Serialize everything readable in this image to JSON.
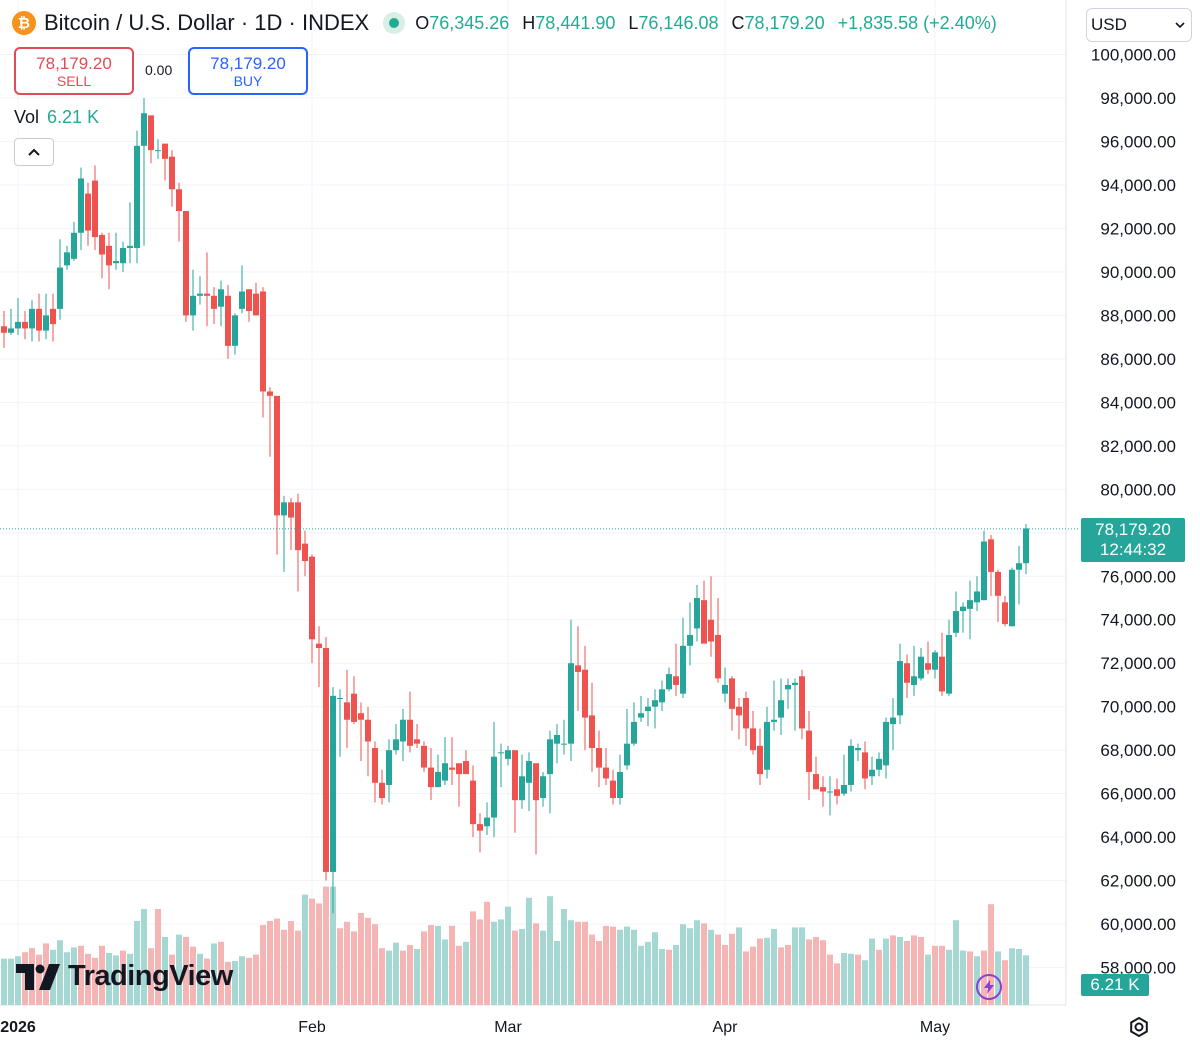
{
  "header": {
    "symbol_title": "Bitcoin / U.S. Dollar · 1D · INDEX",
    "coin_glyph": "₿",
    "ohlc": {
      "o_label": "O",
      "o_value": "76,345.26",
      "h_label": "H",
      "h_value": "78,441.90",
      "l_label": "L",
      "l_value": "76,146.08",
      "c_label": "C",
      "c_value": "78,179.20",
      "change": "+1,835.58 (+2.40%)"
    }
  },
  "trade": {
    "sell_price": "78,179.20",
    "sell_label": "SELL",
    "spread": "0.00",
    "buy_price": "78,179.20",
    "buy_label": "BUY"
  },
  "volume_legend": {
    "label": "Vol",
    "value": "6.21 K"
  },
  "currency_select": {
    "value": "USD"
  },
  "price_tag": {
    "price": "78,179.20",
    "countdown": "12:44:32"
  },
  "volume_tag": "6.21 K",
  "branding": {
    "name": "TradingView"
  },
  "colors": {
    "up": "#26a69a",
    "down": "#ef5350",
    "up_volume": "#a6d8d3",
    "down_volume": "#f5b5b4",
    "grid": "#f0f3fa"
  },
  "chart_data": {
    "type": "candlestick",
    "ylim": [
      56000,
      101200
    ],
    "y_ticks": [
      "100,000.00",
      "98,000.00",
      "96,000.00",
      "94,000.00",
      "92,000.00",
      "90,000.00",
      "88,000.00",
      "86,000.00",
      "84,000.00",
      "82,000.00",
      "80,000.00",
      "78,000.00",
      "76,000.00",
      "74,000.00",
      "72,000.00",
      "70,000.00",
      "68,000.00",
      "66,000.00",
      "64,000.00",
      "62,000.00",
      "60,000.00",
      "58,000.00"
    ],
    "x_ticks": [
      {
        "label": "2026",
        "index": 2
      },
      {
        "label": "Feb",
        "index": 44
      },
      {
        "label": "Mar",
        "index": 72
      },
      {
        "label": "Apr",
        "index": 103
      },
      {
        "label": "May",
        "index": 133
      }
    ],
    "last_price": 78179.2,
    "candles": [
      [
        87500,
        87200,
        88200,
        86500
      ],
      [
        87200,
        87400,
        88300,
        87100
      ],
      [
        87400,
        87700,
        88800,
        87100
      ],
      [
        87700,
        87400,
        88200,
        86900
      ],
      [
        87400,
        88300,
        88700,
        86800
      ],
      [
        88300,
        87300,
        89000,
        86800
      ],
      [
        87300,
        88000,
        89000,
        86900
      ],
      [
        88300,
        87600,
        89000,
        86800
      ],
      [
        88300,
        90200,
        91500,
        87800
      ],
      [
        90300,
        90900,
        91200,
        90100
      ],
      [
        90600,
        91800,
        92300,
        90500
      ],
      [
        91800,
        94300,
        94800,
        91000
      ],
      [
        93600,
        91900,
        94100,
        91200
      ],
      [
        94200,
        91600,
        94900,
        91000
      ],
      [
        91700,
        90800,
        91800,
        89700
      ],
      [
        91200,
        90300,
        91800,
        89200
      ],
      [
        90400,
        90500,
        91800,
        90100
      ],
      [
        90400,
        91100,
        91400,
        90000
      ],
      [
        91100,
        91200,
        93200,
        90400
      ],
      [
        91100,
        95800,
        96500,
        90400
      ],
      [
        95800,
        97300,
        98000,
        91200
      ],
      [
        97200,
        95600,
        97100,
        95000
      ],
      [
        95600,
        95600,
        96100,
        95200
      ],
      [
        95900,
        95200,
        95800,
        94200
      ],
      [
        95300,
        93800,
        95600,
        93000
      ],
      [
        93800,
        92800,
        94100,
        91400
      ],
      [
        92800,
        88000,
        92800,
        87700
      ],
      [
        88000,
        88900,
        90100,
        87300
      ],
      [
        88900,
        89000,
        89800,
        88500
      ],
      [
        89000,
        88900,
        90900,
        87500
      ],
      [
        88900,
        88300,
        89300,
        87600
      ],
      [
        88400,
        89200,
        89600,
        87500
      ],
      [
        88900,
        86600,
        89400,
        86000
      ],
      [
        86600,
        88000,
        88100,
        86200
      ],
      [
        88300,
        89100,
        90300,
        88100
      ],
      [
        89200,
        88200,
        89200,
        87700
      ],
      [
        89000,
        88000,
        89500,
        88000
      ],
      [
        89100,
        84500,
        89300,
        83300
      ],
      [
        84500,
        84300,
        84700,
        81500
      ],
      [
        84300,
        78800,
        84100,
        77000
      ],
      [
        78800,
        79400,
        79700,
        76200
      ],
      [
        79400,
        78700,
        79600,
        77200
      ],
      [
        79400,
        77200,
        79800,
        75300
      ],
      [
        77500,
        76700,
        78100,
        76000
      ],
      [
        76900,
        73100,
        77000,
        72000
      ],
      [
        72900,
        72700,
        73700,
        70900
      ],
      [
        72700,
        62400,
        73200,
        62000
      ],
      [
        62400,
        70500,
        70900,
        60500
      ],
      [
        70400,
        70400,
        70800,
        67700
      ],
      [
        70200,
        69400,
        71700,
        68100
      ],
      [
        70600,
        69300,
        71400,
        69200
      ],
      [
        69700,
        69400,
        70200,
        67500
      ],
      [
        69400,
        68400,
        70000,
        66800
      ],
      [
        68100,
        66500,
        68400,
        65600
      ],
      [
        66500,
        65800,
        67100,
        65500
      ],
      [
        66400,
        68000,
        68500,
        65600
      ],
      [
        68000,
        68500,
        69200,
        67800
      ],
      [
        68400,
        69400,
        69900,
        67500
      ],
      [
        69400,
        68200,
        70700,
        67900
      ],
      [
        68500,
        68300,
        69200,
        68100
      ],
      [
        68200,
        67200,
        68400,
        67000
      ],
      [
        67200,
        66300,
        68100,
        65700
      ],
      [
        66300,
        67000,
        67800,
        66700
      ],
      [
        66600,
        67400,
        68600,
        66400
      ],
      [
        67200,
        67100,
        68600,
        66400
      ],
      [
        67400,
        66900,
        67300,
        65400
      ],
      [
        67500,
        66900,
        68000,
        67000
      ],
      [
        66600,
        64600,
        67300,
        64000
      ],
      [
        64600,
        64300,
        65100,
        63300
      ],
      [
        64500,
        64900,
        65600,
        64100
      ],
      [
        64900,
        67700,
        69300,
        64000
      ],
      [
        67900,
        67900,
        68300,
        66300
      ],
      [
        67600,
        68000,
        68200,
        67300
      ],
      [
        68000,
        65700,
        67800,
        64200
      ],
      [
        65700,
        66800,
        67800,
        65300
      ],
      [
        66500,
        67500,
        67900,
        65200
      ],
      [
        67400,
        65700,
        67300,
        63200
      ],
      [
        65800,
        66800,
        67000,
        65400
      ],
      [
        66900,
        68500,
        68900,
        65100
      ],
      [
        68300,
        68700,
        69200,
        67400
      ],
      [
        68300,
        68300,
        69400,
        67800
      ],
      [
        68300,
        72000,
        74000,
        67500
      ],
      [
        71900,
        71600,
        73700,
        69800
      ],
      [
        71700,
        69500,
        72800,
        68000
      ],
      [
        69600,
        68100,
        71100,
        67000
      ],
      [
        68100,
        67200,
        68900,
        66300
      ],
      [
        67200,
        66700,
        68100,
        66400
      ],
      [
        66600,
        65800,
        67100,
        65500
      ],
      [
        65800,
        67000,
        67800,
        65500
      ],
      [
        67300,
        68300,
        69900,
        67100
      ],
      [
        68300,
        69300,
        70200,
        68200
      ],
      [
        69500,
        69700,
        70500,
        69300
      ],
      [
        69800,
        70000,
        70400,
        69100
      ],
      [
        70000,
        70300,
        70800,
        69000
      ],
      [
        70200,
        70800,
        71200,
        69800
      ],
      [
        70800,
        71500,
        71800,
        70700
      ],
      [
        71400,
        71000,
        72900,
        70500
      ],
      [
        70600,
        72800,
        74100,
        70400
      ],
      [
        72800,
        73300,
        74800,
        71900
      ],
      [
        73600,
        75000,
        75600,
        73000
      ],
      [
        74900,
        72900,
        75800,
        73600
      ],
      [
        74000,
        73000,
        76000,
        72300
      ],
      [
        73300,
        71300,
        75000,
        71100
      ],
      [
        70600,
        71000,
        71800,
        70200
      ],
      [
        71300,
        69900,
        71400,
        68900
      ],
      [
        70000,
        69600,
        70400,
        68500
      ],
      [
        70400,
        69000,
        70700,
        68200
      ],
      [
        69000,
        68000,
        69800,
        67800
      ],
      [
        68200,
        66900,
        69000,
        66400
      ],
      [
        67100,
        69300,
        70000,
        66700
      ],
      [
        69300,
        69400,
        71200,
        68900
      ],
      [
        69500,
        70300,
        71300,
        68700
      ],
      [
        70800,
        71000,
        71300,
        69900
      ],
      [
        71000,
        71100,
        71300,
        68900
      ],
      [
        71400,
        69000,
        71700,
        68500
      ],
      [
        68900,
        67000,
        69800,
        65700
      ],
      [
        66900,
        66200,
        67700,
        66200
      ],
      [
        66300,
        66100,
        66800,
        65400
      ],
      [
        66100,
        66100,
        66800,
        65000
      ],
      [
        66200,
        65900,
        66700,
        65500
      ],
      [
        66000,
        66400,
        67800,
        65900
      ],
      [
        66400,
        68200,
        68500,
        66100
      ],
      [
        68000,
        68100,
        68300,
        67500
      ],
      [
        67900,
        66700,
        68400,
        66200
      ],
      [
        66800,
        67100,
        67700,
        66400
      ],
      [
        67100,
        67600,
        67900,
        66800
      ],
      [
        67300,
        69300,
        69500,
        66700
      ],
      [
        69200,
        69500,
        70400,
        68000
      ],
      [
        69600,
        72100,
        72900,
        69200
      ],
      [
        72000,
        71100,
        72400,
        70400
      ],
      [
        71000,
        71400,
        72800,
        70500
      ],
      [
        71300,
        72300,
        72700,
        71200
      ],
      [
        72000,
        71700,
        73000,
        71500
      ],
      [
        71700,
        72500,
        72600,
        71300
      ],
      [
        72300,
        70700,
        73400,
        70500
      ],
      [
        70600,
        73300,
        74000,
        70500
      ],
      [
        73400,
        74400,
        75300,
        73200
      ],
      [
        74400,
        74600,
        74800,
        73400
      ],
      [
        74500,
        74900,
        75800,
        73100
      ],
      [
        74800,
        75300,
        76000,
        74400
      ],
      [
        74900,
        77600,
        78100,
        74900
      ],
      [
        77700,
        76200,
        77900,
        75100
      ],
      [
        76200,
        75100,
        76300,
        73900
      ],
      [
        74800,
        73800,
        75100,
        73700
      ],
      [
        73700,
        76300,
        76400,
        73700
      ],
      [
        76300,
        76600,
        77400,
        74700
      ],
      [
        76600,
        78200,
        78400,
        76100
      ]
    ],
    "volumes": [
      [
        5800,
        "u"
      ],
      [
        5800,
        "u"
      ],
      [
        6100,
        "u"
      ],
      [
        6600,
        "d"
      ],
      [
        7100,
        "d"
      ],
      [
        6300,
        "d"
      ],
      [
        7700,
        "d"
      ],
      [
        6900,
        "u"
      ],
      [
        8100,
        "u"
      ],
      [
        6600,
        "u"
      ],
      [
        7200,
        "u"
      ],
      [
        7400,
        "d"
      ],
      [
        6400,
        "d"
      ],
      [
        5900,
        "d"
      ],
      [
        7400,
        "d"
      ],
      [
        6500,
        "u"
      ],
      [
        6200,
        "u"
      ],
      [
        6800,
        "d"
      ],
      [
        6400,
        "u"
      ],
      [
        10500,
        "u"
      ],
      [
        12000,
        "u"
      ],
      [
        7100,
        "d"
      ],
      [
        12000,
        "d"
      ],
      [
        8500,
        "u"
      ],
      [
        6300,
        "d"
      ],
      [
        8800,
        "u"
      ],
      [
        8500,
        "d"
      ],
      [
        7300,
        "d"
      ],
      [
        6400,
        "u"
      ],
      [
        5800,
        "d"
      ],
      [
        7700,
        "u"
      ],
      [
        7900,
        "d"
      ],
      [
        5400,
        "d"
      ],
      [
        5500,
        "u"
      ],
      [
        6100,
        "u"
      ],
      [
        5900,
        "d"
      ],
      [
        6300,
        "d"
      ],
      [
        10000,
        "d"
      ],
      [
        10500,
        "d"
      ],
      [
        10800,
        "d"
      ],
      [
        9400,
        "d"
      ],
      [
        10500,
        "d"
      ],
      [
        9300,
        "d"
      ],
      [
        13800,
        "u"
      ],
      [
        13300,
        "d"
      ],
      [
        12700,
        "d"
      ],
      [
        14800,
        "d"
      ],
      [
        14800,
        "u"
      ],
      [
        9600,
        "d"
      ],
      [
        10400,
        "d"
      ],
      [
        9200,
        "d"
      ],
      [
        11500,
        "d"
      ],
      [
        10900,
        "d"
      ],
      [
        10100,
        "d"
      ],
      [
        7100,
        "d"
      ],
      [
        6800,
        "u"
      ],
      [
        7800,
        "u"
      ],
      [
        6800,
        "d"
      ],
      [
        7500,
        "d"
      ],
      [
        7000,
        "u"
      ],
      [
        9200,
        "d"
      ],
      [
        10000,
        "d"
      ],
      [
        9900,
        "u"
      ],
      [
        8200,
        "u"
      ],
      [
        9900,
        "d"
      ],
      [
        7400,
        "d"
      ],
      [
        7900,
        "u"
      ],
      [
        11700,
        "d"
      ],
      [
        10700,
        "d"
      ],
      [
        12900,
        "d"
      ],
      [
        10400,
        "u"
      ],
      [
        10700,
        "u"
      ],
      [
        12300,
        "u"
      ],
      [
        9300,
        "d"
      ],
      [
        9500,
        "u"
      ],
      [
        13400,
        "u"
      ],
      [
        10200,
        "d"
      ],
      [
        9300,
        "u"
      ],
      [
        13600,
        "u"
      ],
      [
        8000,
        "u"
      ],
      [
        12000,
        "u"
      ],
      [
        10600,
        "u"
      ],
      [
        10400,
        "d"
      ],
      [
        10400,
        "d"
      ],
      [
        8800,
        "d"
      ],
      [
        8000,
        "d"
      ],
      [
        9900,
        "d"
      ],
      [
        9800,
        "d"
      ],
      [
        9400,
        "u"
      ],
      [
        9800,
        "u"
      ],
      [
        9400,
        "u"
      ],
      [
        7400,
        "u"
      ],
      [
        7900,
        "u"
      ],
      [
        9100,
        "u"
      ],
      [
        7000,
        "u"
      ],
      [
        6900,
        "d"
      ],
      [
        7500,
        "u"
      ],
      [
        10100,
        "u"
      ],
      [
        9600,
        "u"
      ],
      [
        10600,
        "u"
      ],
      [
        10200,
        "d"
      ],
      [
        9400,
        "u"
      ],
      [
        8800,
        "d"
      ],
      [
        7500,
        "d"
      ],
      [
        8900,
        "d"
      ],
      [
        9700,
        "u"
      ],
      [
        6700,
        "d"
      ],
      [
        7300,
        "d"
      ],
      [
        8300,
        "d"
      ],
      [
        8400,
        "u"
      ],
      [
        9500,
        "u"
      ],
      [
        7200,
        "d"
      ],
      [
        7500,
        "d"
      ],
      [
        9700,
        "u"
      ],
      [
        9700,
        "u"
      ],
      [
        8200,
        "d"
      ],
      [
        8500,
        "d"
      ],
      [
        8100,
        "d"
      ],
      [
        6300,
        "d"
      ],
      [
        5200,
        "d"
      ],
      [
        6500,
        "u"
      ],
      [
        6400,
        "u"
      ],
      [
        6300,
        "d"
      ],
      [
        5600,
        "u"
      ],
      [
        8300,
        "u"
      ],
      [
        6900,
        "d"
      ],
      [
        8300,
        "u"
      ],
      [
        8700,
        "d"
      ],
      [
        8500,
        "u"
      ],
      [
        8000,
        "d"
      ],
      [
        8700,
        "d"
      ],
      [
        8500,
        "d"
      ],
      [
        6300,
        "u"
      ],
      [
        7400,
        "d"
      ],
      [
        7400,
        "d"
      ],
      [
        6900,
        "u"
      ],
      [
        10600,
        "u"
      ],
      [
        6800,
        "u"
      ],
      [
        6700,
        "d"
      ],
      [
        6100,
        "u"
      ],
      [
        6800,
        "d"
      ],
      [
        12600,
        "d"
      ],
      [
        6700,
        "u"
      ],
      [
        5600,
        "d"
      ],
      [
        7100,
        "u"
      ],
      [
        7000,
        "u"
      ],
      [
        6210,
        "u"
      ]
    ]
  }
}
